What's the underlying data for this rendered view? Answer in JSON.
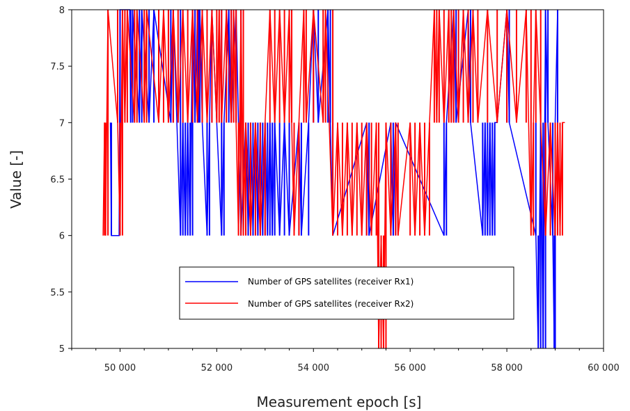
{
  "chart_data": {
    "type": "line",
    "title": "",
    "xlabel": "Measurement epoch [s]",
    "ylabel": "Value [-]",
    "xlim": [
      49000,
      60000
    ],
    "ylim": [
      5,
      8
    ],
    "grid": false,
    "x_tick_labels": [
      "50 000",
      "52 000",
      "54 000",
      "56 000",
      "58 000",
      "60 000"
    ],
    "x_ticks": [
      50000,
      52000,
      54000,
      56000,
      58000,
      60000
    ],
    "y_tick_labels": [
      "5",
      "5.5",
      "6",
      "6.5",
      "7",
      "7.5",
      "8"
    ],
    "y_ticks": [
      5,
      5.5,
      6,
      6.5,
      7,
      7.5,
      8
    ],
    "legend_position": "bottom-center",
    "series": [
      {
        "name": "Number of GPS satellites (receiver Rx1)",
        "color": "#0000ff",
        "x": [
          49800,
          49820,
          49980,
          50000,
          50200,
          50220,
          50260,
          50400,
          50450,
          50600,
          50700,
          51050,
          51100,
          51250,
          51300,
          51350,
          51400,
          51450,
          51500,
          51550,
          51600,
          51620,
          51650,
          51700,
          51800,
          51850,
          51900,
          52100,
          52150,
          52250,
          52300,
          52400,
          52500,
          52600,
          52650,
          52700,
          52750,
          52800,
          52850,
          52900,
          52950,
          53000,
          53050,
          53100,
          53150,
          53200,
          53300,
          53400,
          53500,
          53700,
          53750,
          53900,
          54000,
          54100,
          54300,
          54350,
          54400,
          55100,
          55150,
          55600,
          55650,
          55700,
          56700,
          56750,
          56900,
          56950,
          57200,
          57250,
          57500,
          57550,
          57600,
          57650,
          57700,
          57750,
          57800,
          58000,
          58050,
          58600,
          58650,
          58700,
          58750,
          58800,
          58850,
          58950,
          58980,
          59000,
          59050
        ],
        "values": [
          7,
          6,
          6,
          8,
          8,
          7,
          8,
          7,
          8,
          7,
          8,
          7,
          8,
          6,
          7,
          6,
          7,
          6,
          8,
          7,
          8,
          7,
          8,
          7,
          6,
          7,
          8,
          6,
          7,
          8,
          7,
          8,
          6,
          7,
          6,
          7,
          6,
          7,
          6,
          7,
          6,
          7,
          6,
          7,
          6,
          7,
          6,
          7,
          6,
          7,
          6,
          7,
          8,
          7,
          8,
          7,
          6,
          7,
          6,
          7,
          6,
          7,
          6,
          7,
          8,
          7,
          8,
          7,
          6,
          7,
          6,
          7,
          6,
          7,
          7,
          8,
          7,
          6,
          5,
          7,
          5,
          8,
          7,
          6,
          5,
          7,
          8
        ]
      },
      {
        "name": "Number of GPS satellites (receiver Rx2)",
        "color": "#ff0000",
        "x": [
          49650,
          49680,
          49700,
          49750,
          49950,
          50000,
          50050,
          50100,
          50150,
          50300,
          50350,
          50500,
          50550,
          50800,
          50900,
          51000,
          51100,
          51200,
          51300,
          51400,
          51500,
          51600,
          51700,
          51800,
          51900,
          52000,
          52050,
          52100,
          52200,
          52300,
          52350,
          52400,
          52450,
          52500,
          52550,
          52600,
          52700,
          52800,
          52900,
          53000,
          53100,
          53200,
          53300,
          53400,
          53500,
          53550,
          53600,
          53700,
          53800,
          53850,
          54000,
          54200,
          54250,
          54400,
          54500,
          54600,
          54700,
          54800,
          54900,
          55000,
          55100,
          55200,
          55300,
          55350,
          55400,
          55450,
          55500,
          55600,
          55700,
          55750,
          56000,
          56100,
          56200,
          56300,
          56400,
          56500,
          56550,
          56600,
          56700,
          56800,
          56850,
          56900,
          57000,
          57100,
          57200,
          57300,
          57400,
          57600,
          57800,
          58000,
          58200,
          58400,
          58500,
          58550,
          58600,
          58700,
          58800,
          58900,
          59000,
          59050,
          59100,
          59150,
          59200
        ],
        "values": [
          6,
          7,
          6,
          8,
          7,
          6,
          8,
          7,
          8,
          7,
          8,
          7,
          8,
          7,
          8,
          7,
          8,
          7,
          8,
          7,
          8,
          7,
          8,
          7,
          8,
          7,
          8,
          7,
          8,
          7,
          8,
          7,
          6,
          8,
          6,
          7,
          6,
          7,
          6,
          7,
          8,
          7,
          8,
          7,
          8,
          7,
          6,
          7,
          8,
          7,
          8,
          7,
          8,
          6,
          7,
          6,
          7,
          6,
          7,
          6,
          7,
          6,
          7,
          5,
          6,
          5,
          7,
          6,
          7,
          6,
          7,
          6,
          7,
          6,
          7,
          8,
          7,
          8,
          7,
          8,
          7,
          8,
          7,
          8,
          7,
          8,
          7,
          8,
          7,
          8,
          7,
          8,
          6,
          7,
          8,
          7,
          6,
          7,
          6,
          7,
          6,
          7,
          7
        ]
      }
    ]
  }
}
